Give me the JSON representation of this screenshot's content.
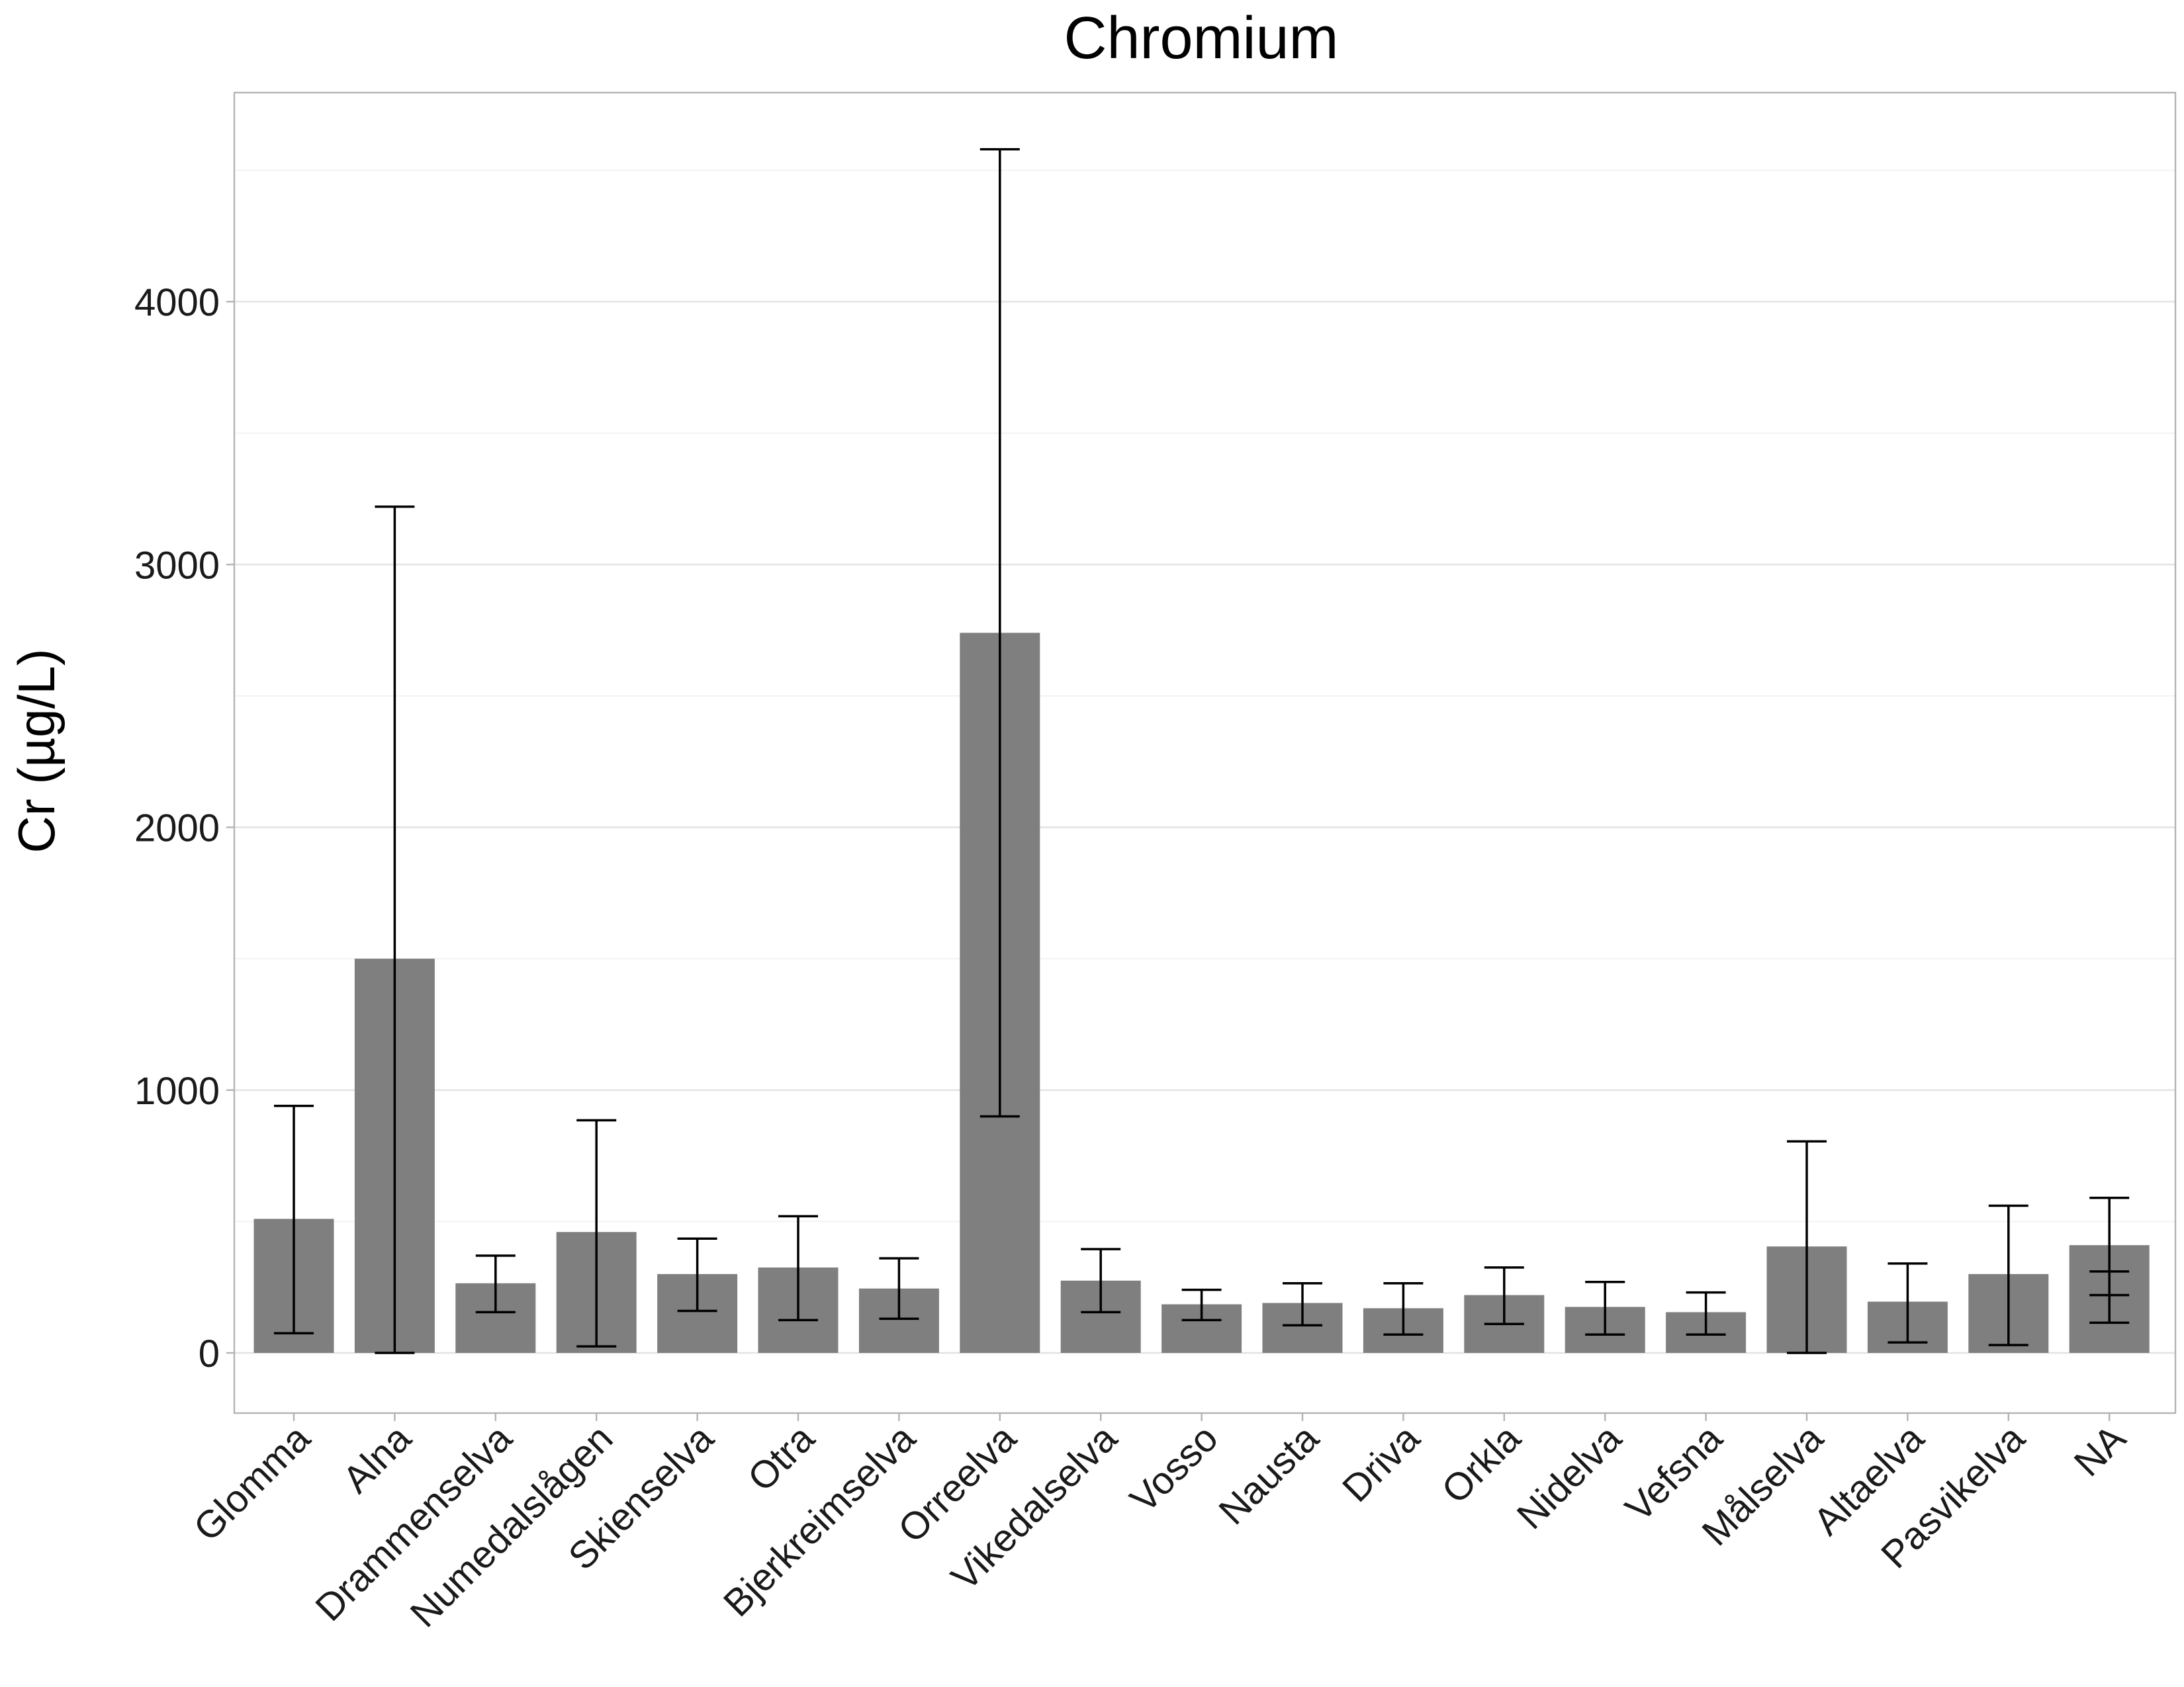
{
  "chart_data": {
    "type": "bar",
    "title": "Chromium",
    "xlabel": "",
    "ylabel": "Cr (µg/L)",
    "ylim": [
      -220,
      4800
    ],
    "yticks": [
      0,
      1000,
      2000,
      3000,
      4000
    ],
    "grid": true,
    "bar_color": "#7f7f7f",
    "error_bar_color": "#000000",
    "categories": [
      "Glomma",
      "Alna",
      "Drammenselva",
      "Numedalslågen",
      "Skienselva",
      "Otra",
      "Bjerkreimselva",
      "Orreelva",
      "Vikedalselva",
      "Vosso",
      "Nausta",
      "Driva",
      "Orkla",
      "Nidelva",
      "Vefsna",
      "Målselva",
      "Altaelva",
      "Pasvikelva",
      "NA"
    ],
    "values": [
      510,
      1500,
      265,
      460,
      300,
      325,
      245,
      2740,
      275,
      185,
      190,
      170,
      220,
      175,
      155,
      405,
      195,
      300,
      410
    ],
    "error_low": [
      75,
      0,
      155,
      25,
      160,
      125,
      130,
      900,
      155,
      125,
      105,
      70,
      110,
      70,
      70,
      0,
      40,
      30,
      115
    ],
    "error_high": [
      940,
      3220,
      370,
      885,
      435,
      520,
      360,
      4580,
      395,
      240,
      265,
      265,
      325,
      270,
      230,
      805,
      340,
      560,
      590
    ],
    "extra_error_caps": [
      {
        "category": "NA",
        "values": [
          310,
          220
        ]
      }
    ]
  }
}
